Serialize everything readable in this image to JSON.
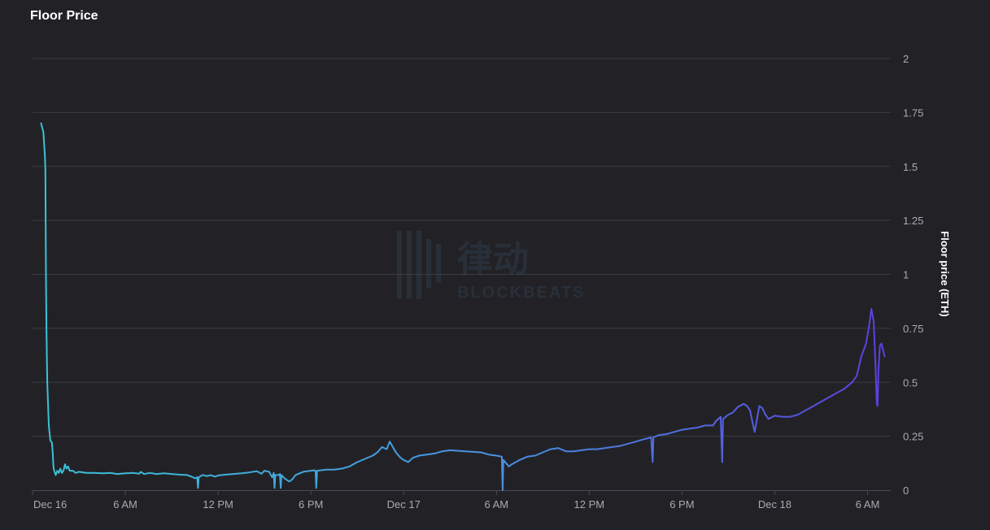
{
  "chart_data": {
    "type": "line",
    "title": "Floor Price",
    "xlabel": "",
    "ylabel": "Floor price (ETH)",
    "ylim": [
      0,
      2
    ],
    "y_ticks": [
      "0",
      "0.25",
      "0.5",
      "0.75",
      "1",
      "1.25",
      "1.5",
      "1.75",
      "2"
    ],
    "x_ticks": [
      {
        "label": "Dec 16",
        "hour": 0
      },
      {
        "label": "6 AM",
        "hour": 6
      },
      {
        "label": "12 PM",
        "hour": 12
      },
      {
        "label": "6 PM",
        "hour": 18
      },
      {
        "label": "Dec 17",
        "hour": 24
      },
      {
        "label": "6 AM",
        "hour": 30
      },
      {
        "label": "12 PM",
        "hour": 36
      },
      {
        "label": "6 PM",
        "hour": 42
      },
      {
        "label": "Dec 18",
        "hour": 48
      },
      {
        "label": "6 AM",
        "hour": 54
      }
    ],
    "xlim": [
      0,
      55.5
    ],
    "grid": true,
    "line_gradient": [
      "#39c3d6",
      "#4a8fe0",
      "#5a3fe0"
    ],
    "series": [
      {
        "points": [
          [
            0.55,
            1.7
          ],
          [
            0.7,
            1.66
          ],
          [
            0.8,
            1.55
          ],
          [
            0.83,
            1.48
          ],
          [
            0.87,
            1.0
          ],
          [
            0.9,
            0.75
          ],
          [
            0.95,
            0.5
          ],
          [
            1.05,
            0.3
          ],
          [
            1.15,
            0.23
          ],
          [
            1.25,
            0.22
          ],
          [
            1.3,
            0.18
          ],
          [
            1.35,
            0.11
          ],
          [
            1.4,
            0.09
          ],
          [
            1.5,
            0.07
          ],
          [
            1.6,
            0.09
          ],
          [
            1.7,
            0.08
          ],
          [
            1.8,
            0.1
          ],
          [
            1.9,
            0.08
          ],
          [
            2.0,
            0.09
          ],
          [
            2.1,
            0.12
          ],
          [
            2.2,
            0.1
          ],
          [
            2.3,
            0.11
          ],
          [
            2.4,
            0.09
          ],
          [
            2.6,
            0.09
          ],
          [
            2.8,
            0.08
          ],
          [
            3.0,
            0.085
          ],
          [
            3.5,
            0.08
          ],
          [
            4.0,
            0.08
          ],
          [
            4.5,
            0.078
          ],
          [
            5.0,
            0.08
          ],
          [
            5.5,
            0.075
          ],
          [
            6.0,
            0.078
          ],
          [
            6.5,
            0.08
          ],
          [
            6.9,
            0.076
          ],
          [
            7.0,
            0.085
          ],
          [
            7.2,
            0.075
          ],
          [
            7.6,
            0.08
          ],
          [
            8.0,
            0.075
          ],
          [
            8.5,
            0.078
          ],
          [
            9.0,
            0.075
          ],
          [
            9.5,
            0.072
          ],
          [
            10.0,
            0.07
          ],
          [
            10.3,
            0.062
          ],
          [
            10.5,
            0.055
          ],
          [
            10.65,
            0.06
          ],
          [
            10.7,
            0.01
          ],
          [
            10.75,
            0.06
          ],
          [
            11.0,
            0.07
          ],
          [
            11.3,
            0.065
          ],
          [
            11.5,
            0.07
          ],
          [
            11.8,
            0.063
          ],
          [
            12.0,
            0.068
          ],
          [
            12.5,
            0.072
          ],
          [
            13.0,
            0.075
          ],
          [
            13.5,
            0.078
          ],
          [
            14.0,
            0.082
          ],
          [
            14.5,
            0.088
          ],
          [
            14.8,
            0.076
          ],
          [
            15.0,
            0.09
          ],
          [
            15.3,
            0.085
          ],
          [
            15.5,
            0.06
          ],
          [
            15.6,
            0.08
          ],
          [
            15.65,
            0.01
          ],
          [
            15.7,
            0.07
          ],
          [
            15.9,
            0.07
          ],
          [
            16.0,
            0.075
          ],
          [
            16.05,
            0.01
          ],
          [
            16.1,
            0.07
          ],
          [
            16.3,
            0.055
          ],
          [
            16.6,
            0.04
          ],
          [
            16.8,
            0.05
          ],
          [
            17.0,
            0.07
          ],
          [
            17.5,
            0.085
          ],
          [
            18.0,
            0.09
          ],
          [
            18.2,
            0.092
          ],
          [
            18.3,
            0.09
          ],
          [
            18.35,
            0.01
          ],
          [
            18.4,
            0.09
          ],
          [
            19.0,
            0.095
          ],
          [
            19.5,
            0.095
          ],
          [
            20.0,
            0.1
          ],
          [
            20.5,
            0.11
          ],
          [
            21.0,
            0.13
          ],
          [
            21.5,
            0.145
          ],
          [
            22.0,
            0.16
          ],
          [
            22.3,
            0.175
          ],
          [
            22.6,
            0.2
          ],
          [
            22.9,
            0.19
          ],
          [
            23.1,
            0.225
          ],
          [
            23.3,
            0.2
          ],
          [
            23.5,
            0.175
          ],
          [
            23.8,
            0.15
          ],
          [
            24.0,
            0.14
          ],
          [
            24.3,
            0.13
          ],
          [
            24.6,
            0.15
          ],
          [
            25.0,
            0.16
          ],
          [
            25.5,
            0.165
          ],
          [
            26.0,
            0.17
          ],
          [
            26.5,
            0.18
          ],
          [
            27.0,
            0.185
          ],
          [
            28.0,
            0.18
          ],
          [
            29.0,
            0.175
          ],
          [
            29.5,
            0.165
          ],
          [
            30.0,
            0.16
          ],
          [
            30.35,
            0.155
          ],
          [
            30.4,
            0.0
          ],
          [
            30.45,
            0.14
          ],
          [
            30.8,
            0.11
          ],
          [
            31.0,
            0.12
          ],
          [
            31.5,
            0.14
          ],
          [
            32.0,
            0.155
          ],
          [
            32.5,
            0.16
          ],
          [
            33.0,
            0.175
          ],
          [
            33.5,
            0.19
          ],
          [
            34.0,
            0.195
          ],
          [
            34.5,
            0.18
          ],
          [
            35.0,
            0.18
          ],
          [
            35.5,
            0.185
          ],
          [
            36.0,
            0.19
          ],
          [
            36.5,
            0.19
          ],
          [
            37.0,
            0.195
          ],
          [
            37.5,
            0.2
          ],
          [
            38.0,
            0.205
          ],
          [
            38.5,
            0.215
          ],
          [
            39.0,
            0.225
          ],
          [
            39.5,
            0.235
          ],
          [
            40.0,
            0.245
          ],
          [
            40.1,
            0.13
          ],
          [
            40.15,
            0.245
          ],
          [
            40.5,
            0.255
          ],
          [
            41.0,
            0.26
          ],
          [
            41.5,
            0.27
          ],
          [
            42.0,
            0.28
          ],
          [
            42.5,
            0.285
          ],
          [
            43.0,
            0.29
          ],
          [
            43.5,
            0.3
          ],
          [
            44.0,
            0.3
          ],
          [
            44.2,
            0.32
          ],
          [
            44.5,
            0.34
          ],
          [
            44.6,
            0.13
          ],
          [
            44.65,
            0.33
          ],
          [
            45.0,
            0.35
          ],
          [
            45.3,
            0.36
          ],
          [
            45.6,
            0.385
          ],
          [
            46.0,
            0.4
          ],
          [
            46.2,
            0.39
          ],
          [
            46.4,
            0.37
          ],
          [
            46.6,
            0.3
          ],
          [
            46.7,
            0.27
          ],
          [
            46.8,
            0.31
          ],
          [
            47.0,
            0.39
          ],
          [
            47.2,
            0.38
          ],
          [
            47.4,
            0.35
          ],
          [
            47.6,
            0.33
          ],
          [
            48.0,
            0.345
          ],
          [
            48.5,
            0.34
          ],
          [
            49.0,
            0.34
          ],
          [
            49.5,
            0.35
          ],
          [
            50.0,
            0.37
          ],
          [
            50.5,
            0.39
          ],
          [
            51.0,
            0.41
          ],
          [
            51.5,
            0.43
          ],
          [
            52.0,
            0.45
          ],
          [
            52.5,
            0.47
          ],
          [
            53.0,
            0.5
          ],
          [
            53.3,
            0.53
          ],
          [
            53.6,
            0.62
          ],
          [
            53.9,
            0.68
          ],
          [
            54.1,
            0.76
          ],
          [
            54.25,
            0.84
          ],
          [
            54.4,
            0.78
          ],
          [
            54.5,
            0.6
          ],
          [
            54.6,
            0.4
          ],
          [
            54.65,
            0.39
          ],
          [
            54.7,
            0.55
          ],
          [
            54.8,
            0.67
          ],
          [
            54.9,
            0.68
          ],
          [
            55.1,
            0.62
          ]
        ]
      }
    ]
  },
  "watermark": {
    "cjk": "律动",
    "brand": "BLOCKBEATS"
  }
}
